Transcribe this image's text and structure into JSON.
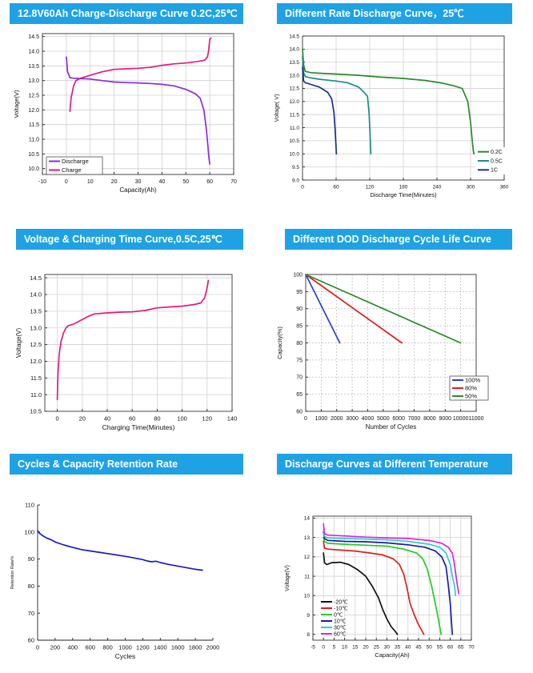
{
  "headers": {
    "c1": "12.8V60Ah Charge-Discharge Curve 0.2C,25℃",
    "c2": "Different  Rate Discharge Curve，25℃",
    "c3": "Voltage & Charging Time Curve,0.5C,25℃",
    "c4": "Different DOD Discharge Cycle Life Curve",
    "c5": "Cycles & Capacity Retention Rate",
    "c6": "Discharge Curves at Different Temperature"
  },
  "chart_data": [
    {
      "id": "c1",
      "type": "line",
      "xlabel": "Capacity(Ah)",
      "ylabel": "Voltage(V)",
      "xlim": [
        -10,
        70
      ],
      "ylim": [
        9.8,
        14.6
      ],
      "xticks": [
        -10,
        0,
        10,
        20,
        30,
        40,
        50,
        60,
        70
      ],
      "yticks": [
        10.0,
        10.5,
        11.0,
        11.5,
        12.0,
        12.5,
        13.0,
        13.5,
        14.0,
        14.5
      ],
      "grid": true,
      "legend_position": "bottom-left",
      "series": [
        {
          "name": "Discharge",
          "color": "#8a2be2",
          "x": [
            0,
            0.5,
            1.5,
            3,
            6,
            10,
            15,
            20,
            25,
            30,
            35,
            40,
            45,
            50,
            54,
            56,
            57.5,
            58.5,
            59.2,
            59.6,
            60
          ],
          "y": [
            13.8,
            13.3,
            13.1,
            13.08,
            13.07,
            13.05,
            13.0,
            12.95,
            12.93,
            12.92,
            12.9,
            12.87,
            12.82,
            12.7,
            12.55,
            12.4,
            12.0,
            11.4,
            10.8,
            10.4,
            10.15
          ]
        },
        {
          "name": "Charge",
          "color": "#e6197e",
          "x": [
            1.5,
            2,
            3,
            4,
            6,
            10,
            15,
            20,
            25,
            30,
            35,
            40,
            45,
            50,
            55,
            58,
            59,
            59.5,
            60,
            60.5
          ],
          "y": [
            11.95,
            12.4,
            12.8,
            13.0,
            13.08,
            13.18,
            13.3,
            13.38,
            13.4,
            13.42,
            13.45,
            13.52,
            13.57,
            13.6,
            13.65,
            13.7,
            13.8,
            14.0,
            14.4,
            14.45
          ]
        }
      ]
    },
    {
      "id": "c2",
      "type": "line",
      "xlabel": "Discharge Time(Minutes)",
      "ylabel": "Voltage( V)",
      "xlim": [
        0,
        360
      ],
      "ylim": [
        9.0,
        14.5
      ],
      "xticks": [
        0,
        60,
        120,
        180,
        240,
        300,
        360
      ],
      "yticks": [
        9.0,
        9.5,
        10.0,
        10.5,
        11.0,
        11.5,
        12.0,
        12.5,
        13.0,
        13.5,
        14.0,
        14.5
      ],
      "grid": true,
      "legend_position": "bottom-right",
      "series": [
        {
          "name": "0.2C",
          "color": "#2a8a2a",
          "x": [
            0,
            2,
            5,
            15,
            30,
            60,
            100,
            140,
            180,
            220,
            250,
            270,
            285,
            295,
            300,
            303,
            305,
            306
          ],
          "y": [
            14.0,
            13.4,
            13.15,
            13.1,
            13.08,
            13.05,
            13.0,
            12.93,
            12.88,
            12.8,
            12.7,
            12.6,
            12.5,
            12.0,
            11.2,
            10.5,
            10.1,
            10.0
          ]
        },
        {
          "name": "0.5C",
          "color": "#1f8a8a",
          "x": [
            0,
            2,
            5,
            15,
            30,
            60,
            80,
            100,
            110,
            116,
            119,
            121,
            122
          ],
          "y": [
            13.7,
            13.1,
            12.95,
            12.9,
            12.85,
            12.78,
            12.72,
            12.55,
            12.35,
            12.2,
            11.5,
            10.5,
            10.0
          ]
        },
        {
          "name": "1C",
          "color": "#1b2d8f",
          "x": [
            0,
            2,
            5,
            15,
            30,
            45,
            52,
            56,
            58,
            59.5,
            60.5
          ],
          "y": [
            13.3,
            12.78,
            12.72,
            12.65,
            12.55,
            12.35,
            12.1,
            11.6,
            11.0,
            10.4,
            10.0
          ]
        }
      ]
    },
    {
      "id": "c3",
      "type": "line",
      "xlabel": "Charging Time(Minutes)",
      "ylabel": "Voltage(V)",
      "xlim": [
        -10,
        140
      ],
      "ylim": [
        10.5,
        14.6
      ],
      "xticks": [
        0,
        20,
        40,
        60,
        80,
        100,
        120,
        140
      ],
      "yticks": [
        10.5,
        11.0,
        11.5,
        12.0,
        12.5,
        13.0,
        13.5,
        14.0,
        14.5
      ],
      "grid": true,
      "series": [
        {
          "name": "",
          "color": "#e6197e",
          "x": [
            0,
            0.5,
            1.5,
            3,
            5,
            7,
            9,
            12,
            15,
            20,
            25,
            30,
            40,
            50,
            60,
            70,
            80,
            90,
            100,
            110,
            115,
            118,
            120,
            121
          ],
          "y": [
            10.85,
            11.6,
            12.2,
            12.6,
            12.85,
            13.0,
            13.07,
            13.1,
            13.15,
            13.25,
            13.35,
            13.42,
            13.45,
            13.47,
            13.48,
            13.52,
            13.6,
            13.63,
            13.65,
            13.7,
            13.75,
            13.9,
            14.2,
            14.42
          ]
        }
      ]
    },
    {
      "id": "c4",
      "type": "line",
      "xlabel": "Number of Cycles",
      "ylabel": "Capacity(%)",
      "xlim": [
        0,
        11000
      ],
      "ylim": [
        60,
        100
      ],
      "xticks": [
        0,
        1000,
        2000,
        3000,
        4000,
        5000,
        6000,
        7000,
        8000,
        9000,
        10000,
        11000
      ],
      "yticks": [
        60,
        65,
        70,
        75,
        80,
        85,
        90,
        95,
        100
      ],
      "grid": true,
      "legend_position": "bottom-right",
      "series": [
        {
          "name": "100%",
          "color": "#2b3fcf",
          "x": [
            0,
            2200
          ],
          "y": [
            100,
            80
          ]
        },
        {
          "name": "80%",
          "color": "#e11d1d",
          "x": [
            0,
            6200
          ],
          "y": [
            100,
            80
          ]
        },
        {
          "name": "50%",
          "color": "#2a8a2a",
          "x": [
            0,
            10000
          ],
          "y": [
            100,
            80
          ]
        }
      ]
    },
    {
      "id": "c5",
      "type": "line",
      "xlabel": "Cycles",
      "ylabel": "Retention Rate%",
      "xlim": [
        0,
        2000
      ],
      "ylim": [
        60,
        110
      ],
      "xticks": [
        0,
        200,
        400,
        600,
        800,
        1000,
        1200,
        1400,
        1600,
        1800,
        2000
      ],
      "yticks": [
        60,
        70,
        80,
        90,
        100,
        110
      ],
      "grid": false,
      "series": [
        {
          "name": "",
          "color": "#1a1acc",
          "x": [
            0,
            20,
            50,
            100,
            150,
            200,
            300,
            400,
            500,
            600,
            700,
            800,
            900,
            1000,
            1100,
            1200,
            1250,
            1300,
            1350,
            1400,
            1500,
            1600,
            1700,
            1800,
            1850,
            1880
          ],
          "y": [
            100.5,
            99.6,
            98.8,
            97.8,
            97.2,
            96.3,
            95.2,
            94.3,
            93.5,
            93.0,
            92.5,
            92.0,
            91.5,
            91.0,
            90.4,
            89.8,
            89.3,
            89.0,
            89.2,
            88.7,
            88.0,
            87.4,
            86.8,
            86.2,
            86.0,
            85.9
          ]
        }
      ]
    },
    {
      "id": "c6",
      "type": "line",
      "xlabel": "Capacity(Ah)",
      "ylabel": "Voltage(V)",
      "xlim": [
        -5,
        70
      ],
      "ylim": [
        7.7,
        14.1
      ],
      "xticks": [
        -5,
        0,
        5,
        10,
        15,
        20,
        25,
        30,
        35,
        40,
        45,
        50,
        55,
        60,
        65,
        70
      ],
      "yticks": [
        8,
        9,
        10,
        11,
        12,
        13,
        14
      ],
      "grid": true,
      "legend_position": "bottom-left",
      "series": [
        {
          "name": "-20℃",
          "color": "#111111",
          "x": [
            0,
            0.5,
            1.5,
            4,
            8,
            12,
            16,
            20,
            23,
            26,
            28,
            30,
            32,
            34,
            35
          ],
          "y": [
            12.2,
            11.7,
            11.6,
            11.7,
            11.72,
            11.6,
            11.35,
            11.0,
            10.5,
            9.9,
            9.3,
            8.8,
            8.4,
            8.15,
            8.0
          ]
        },
        {
          "name": "-10℃",
          "color": "#e11d1d",
          "x": [
            0,
            0.5,
            2,
            8,
            15,
            22,
            28,
            33,
            36,
            38,
            39.5,
            41,
            43,
            45,
            46.5,
            47.5
          ],
          "y": [
            12.8,
            12.45,
            12.4,
            12.35,
            12.3,
            12.2,
            12.1,
            11.9,
            11.6,
            11.1,
            10.4,
            9.6,
            9.0,
            8.5,
            8.2,
            8.0
          ]
        },
        {
          "name": "0℃",
          "color": "#22cc22",
          "x": [
            0,
            0.5,
            2,
            10,
            20,
            30,
            38,
            44,
            47,
            49,
            51,
            52.5,
            54,
            55,
            55.7
          ],
          "y": [
            13.0,
            12.8,
            12.7,
            12.65,
            12.6,
            12.55,
            12.4,
            12.2,
            11.9,
            11.4,
            10.6,
            9.8,
            9.0,
            8.4,
            8.0
          ]
        },
        {
          "name": "10℃",
          "color": "#1a1aaa",
          "x": [
            0,
            0.5,
            2,
            10,
            20,
            30,
            40,
            48,
            53,
            56,
            58,
            59,
            60,
            60.5,
            61
          ],
          "y": [
            13.3,
            12.95,
            12.85,
            12.8,
            12.78,
            12.72,
            12.62,
            12.5,
            12.3,
            12.0,
            11.5,
            10.6,
            9.6,
            8.8,
            8.0
          ]
        },
        {
          "name": "30℃",
          "color": "#33cccc",
          "x": [
            0,
            0.5,
            2,
            10,
            20,
            30,
            40,
            50,
            55,
            58,
            60,
            61,
            62,
            62.5
          ],
          "y": [
            13.4,
            13.05,
            12.98,
            12.95,
            12.92,
            12.88,
            12.8,
            12.65,
            12.5,
            12.2,
            11.6,
            11.0,
            10.5,
            10.0
          ]
        },
        {
          "name": "60℃",
          "color": "#dd22dd",
          "x": [
            0,
            0.5,
            2,
            10,
            20,
            30,
            40,
            50,
            56,
            59,
            61,
            62,
            63,
            64
          ],
          "y": [
            13.7,
            13.2,
            13.12,
            13.08,
            13.02,
            12.98,
            12.95,
            12.85,
            12.7,
            12.5,
            12.2,
            11.6,
            10.8,
            10.1
          ]
        }
      ]
    }
  ]
}
